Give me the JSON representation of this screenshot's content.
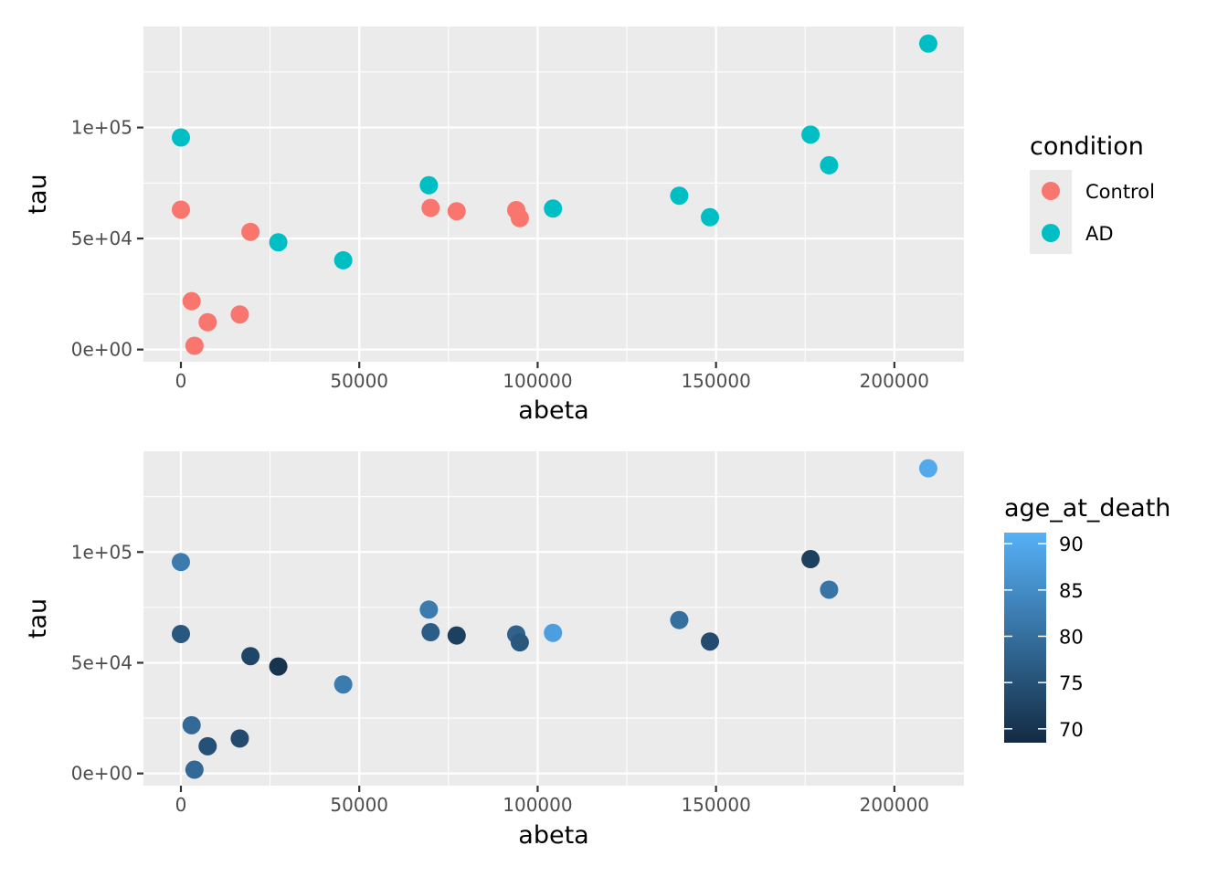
{
  "colors": {
    "Control": "#F8766D",
    "AD": "#00BFC4",
    "gradient_low": "#132B43",
    "gradient_high": "#56B1F7",
    "panel": "#EBEBEB",
    "grid": "#FFFFFF"
  },
  "chart_data": [
    {
      "type": "scatter",
      "xlabel": "abeta",
      "ylabel": "tau",
      "xlim": [
        -10500,
        219500
      ],
      "ylim": [
        -5500,
        145500
      ],
      "x_ticks": [
        0,
        50000,
        100000,
        150000,
        200000
      ],
      "x_tick_labels": [
        "0",
        "50000",
        "100000",
        "150000",
        "200000"
      ],
      "y_ticks": [
        0,
        50000,
        100000
      ],
      "y_tick_labels": [
        "0e+00",
        "5e+04",
        "1e+05"
      ],
      "grid": true,
      "legend": {
        "title": "condition",
        "placement": "right",
        "entries": [
          "Control",
          "AD"
        ]
      },
      "series": [
        {
          "name": "Control",
          "points": [
            {
              "x": 0,
              "y": 63000
            },
            {
              "x": 3000,
              "y": 21800
            },
            {
              "x": 3800,
              "y": 1700
            },
            {
              "x": 7500,
              "y": 12300
            },
            {
              "x": 16500,
              "y": 15800
            },
            {
              "x": 19500,
              "y": 53000
            },
            {
              "x": 70000,
              "y": 63800
            },
            {
              "x": 77300,
              "y": 62300
            },
            {
              "x": 94000,
              "y": 62800
            },
            {
              "x": 95000,
              "y": 59200
            }
          ]
        },
        {
          "name": "AD",
          "points": [
            {
              "x": 0,
              "y": 95500
            },
            {
              "x": 27300,
              "y": 48300
            },
            {
              "x": 45500,
              "y": 40200
            },
            {
              "x": 69500,
              "y": 74000
            },
            {
              "x": 104300,
              "y": 63500
            },
            {
              "x": 139700,
              "y": 69300
            },
            {
              "x": 148300,
              "y": 59600
            },
            {
              "x": 176500,
              "y": 96800
            },
            {
              "x": 181700,
              "y": 83000
            },
            {
              "x": 209500,
              "y": 137800
            }
          ]
        }
      ]
    },
    {
      "type": "scatter",
      "xlabel": "abeta",
      "ylabel": "tau",
      "xlim": [
        -10500,
        219500
      ],
      "ylim": [
        -5500,
        145500
      ],
      "x_ticks": [
        0,
        50000,
        100000,
        150000,
        200000
      ],
      "x_tick_labels": [
        "0",
        "50000",
        "100000",
        "150000",
        "200000"
      ],
      "y_ticks": [
        0,
        50000,
        100000
      ],
      "y_tick_labels": [
        "0e+00",
        "5e+04",
        "1e+05"
      ],
      "grid": true,
      "legend": {
        "title": "age_at_death",
        "placement": "right",
        "type": "colorbar",
        "range": [
          68.5,
          91.2
        ],
        "ticks": [
          70,
          75,
          80,
          85,
          90
        ],
        "tick_labels": [
          "70",
          "75",
          "80",
          "85",
          "90"
        ]
      },
      "points": [
        {
          "x": 0,
          "y": 63000,
          "age": 76
        },
        {
          "x": 3000,
          "y": 21800,
          "age": 79
        },
        {
          "x": 3800,
          "y": 1700,
          "age": 79
        },
        {
          "x": 7500,
          "y": 12300,
          "age": 75
        },
        {
          "x": 16500,
          "y": 15800,
          "age": 74
        },
        {
          "x": 19500,
          "y": 53000,
          "age": 73
        },
        {
          "x": 70000,
          "y": 63800,
          "age": 77
        },
        {
          "x": 77300,
          "y": 62300,
          "age": 72
        },
        {
          "x": 94000,
          "y": 62800,
          "age": 78
        },
        {
          "x": 95000,
          "y": 59200,
          "age": 76
        },
        {
          "x": 0,
          "y": 95500,
          "age": 82
        },
        {
          "x": 27300,
          "y": 48300,
          "age": 70
        },
        {
          "x": 45500,
          "y": 40200,
          "age": 82
        },
        {
          "x": 69500,
          "y": 74000,
          "age": 82
        },
        {
          "x": 104300,
          "y": 63500,
          "age": 88
        },
        {
          "x": 139700,
          "y": 69300,
          "age": 80
        },
        {
          "x": 148300,
          "y": 59600,
          "age": 74
        },
        {
          "x": 176500,
          "y": 96800,
          "age": 72
        },
        {
          "x": 181700,
          "y": 83000,
          "age": 81
        },
        {
          "x": 209500,
          "y": 137800,
          "age": 90
        }
      ]
    }
  ]
}
